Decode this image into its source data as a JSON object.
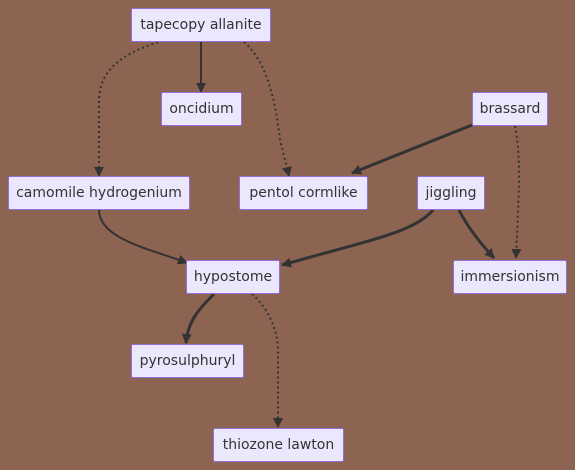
{
  "diagram": {
    "type": "flowchart",
    "nodes": [
      {
        "id": "tapecopy_allanite",
        "label": "tapecopy allanite"
      },
      {
        "id": "oncidium",
        "label": "oncidium"
      },
      {
        "id": "brassard",
        "label": "brassard"
      },
      {
        "id": "camomile_hydrogenium",
        "label": "camomile hydrogenium"
      },
      {
        "id": "pentol_cormlike",
        "label": "pentol cormlike"
      },
      {
        "id": "jiggling",
        "label": "jiggling"
      },
      {
        "id": "hypostome",
        "label": "hypostome"
      },
      {
        "id": "immersionism",
        "label": "immersionism"
      },
      {
        "id": "pyrosulphuryl",
        "label": "pyrosulphuryl"
      },
      {
        "id": "thiozone_lawton",
        "label": "thiozone lawton"
      }
    ],
    "edges": [
      {
        "from": "tapecopy_allanite",
        "to": "oncidium",
        "style": "solid"
      },
      {
        "from": "tapecopy_allanite",
        "to": "camomile_hydrogenium",
        "style": "dotted"
      },
      {
        "from": "tapecopy_allanite",
        "to": "pentol_cormlike",
        "style": "dotted"
      },
      {
        "from": "brassard",
        "to": "pentol_cormlike",
        "style": "thick"
      },
      {
        "from": "brassard",
        "to": "immersionism",
        "style": "dotted"
      },
      {
        "from": "camomile_hydrogenium",
        "to": "hypostome",
        "style": "solid"
      },
      {
        "from": "jiggling",
        "to": "hypostome",
        "style": "thick"
      },
      {
        "from": "jiggling",
        "to": "immersionism",
        "style": "thick"
      },
      {
        "from": "hypostome",
        "to": "pyrosulphuryl",
        "style": "thick"
      },
      {
        "from": "hypostome",
        "to": "thiozone_lawton",
        "style": "dotted"
      }
    ],
    "colors": {
      "background": "#8c6451",
      "node_fill": "#ebe8fd",
      "node_border": "#9370db",
      "text": "#333333",
      "edge": "#333333"
    }
  }
}
